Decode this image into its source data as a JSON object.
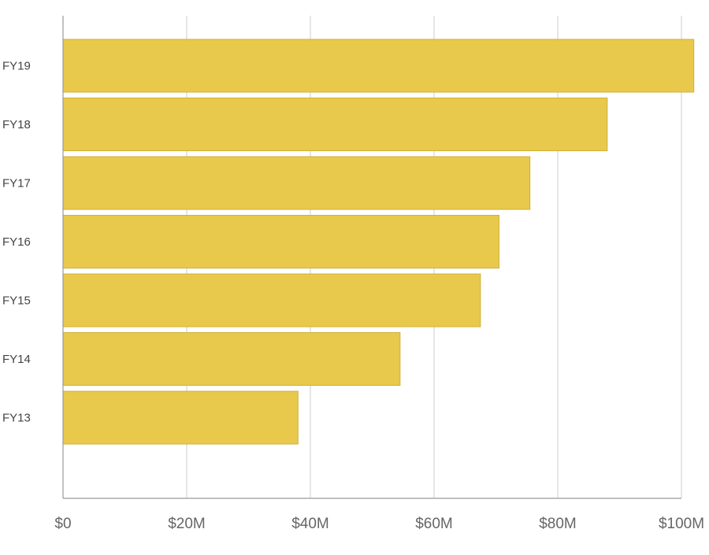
{
  "chart_data": {
    "type": "bar",
    "orientation": "horizontal",
    "categories": [
      "FY19",
      "FY18",
      "FY17",
      "FY16",
      "FY15",
      "FY14",
      "FY13"
    ],
    "values": [
      102,
      88,
      75.5,
      70.5,
      67.5,
      54.5,
      38
    ],
    "unit": "$M",
    "xlim": [
      0,
      100
    ],
    "x_ticks": [
      0,
      20,
      40,
      60,
      80,
      100
    ],
    "x_tick_labels": [
      "$0",
      "$20M",
      "$40M",
      "$60M",
      "$80M",
      "$100M"
    ],
    "title": "",
    "xlabel": "",
    "ylabel": "",
    "grid": "vertical",
    "legend": "none",
    "colors": {
      "bar_fill": "#e8c94c",
      "bar_stroke": "#cfb03a",
      "gridline": "#d6d6d6",
      "axis": "#9a9a9a"
    }
  }
}
